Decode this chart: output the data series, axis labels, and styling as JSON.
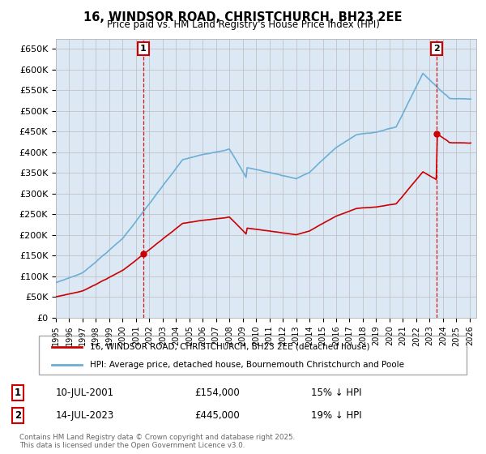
{
  "title": "16, WINDSOR ROAD, CHRISTCHURCH, BH23 2EE",
  "subtitle": "Price paid vs. HM Land Registry's House Price Index (HPI)",
  "legend_line1": "16, WINDSOR ROAD, CHRISTCHURCH, BH23 2EE (detached house)",
  "legend_line2": "HPI: Average price, detached house, Bournemouth Christchurch and Poole",
  "sale1_label": "1",
  "sale1_date": "10-JUL-2001",
  "sale1_price": "£154,000",
  "sale1_hpi": "15% ↓ HPI",
  "sale1_year": 2001.54,
  "sale1_value": 154000,
  "sale2_label": "2",
  "sale2_date": "14-JUL-2023",
  "sale2_price": "£445,000",
  "sale2_hpi": "19% ↓ HPI",
  "sale2_year": 2023.54,
  "sale2_value": 445000,
  "copyright": "Contains HM Land Registry data © Crown copyright and database right 2025.\nThis data is licensed under the Open Government Licence v3.0.",
  "ylim": [
    0,
    675000
  ],
  "xlim_start": 1995.0,
  "xlim_end": 2026.5,
  "hpi_color": "#6baed6",
  "price_color": "#cc0000",
  "vline_color": "#cc0000",
  "grid_color": "#bbbbbb",
  "chart_bg": "#dce9f5",
  "bg_color": "#ffffff",
  "yticks": [
    0,
    50000,
    100000,
    150000,
    200000,
    250000,
    300000,
    350000,
    400000,
    450000,
    500000,
    550000,
    600000,
    650000
  ],
  "ytick_labels": [
    "£0",
    "£50K",
    "£100K",
    "£150K",
    "£200K",
    "£250K",
    "£300K",
    "£350K",
    "£400K",
    "£450K",
    "£500K",
    "£550K",
    "£600K",
    "£650K"
  ],
  "xticks": [
    1995,
    1996,
    1997,
    1998,
    1999,
    2000,
    2001,
    2002,
    2003,
    2004,
    2005,
    2006,
    2007,
    2008,
    2009,
    2010,
    2011,
    2012,
    2013,
    2014,
    2015,
    2016,
    2017,
    2018,
    2019,
    2020,
    2021,
    2022,
    2023,
    2024,
    2025,
    2026
  ],
  "fig_width": 6.0,
  "fig_height": 5.6,
  "dpi": 100
}
